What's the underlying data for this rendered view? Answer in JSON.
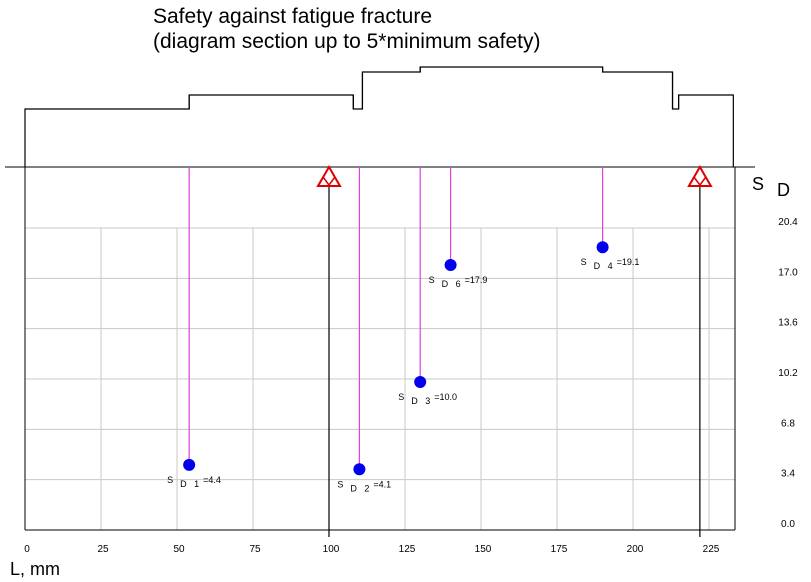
{
  "chart_data": {
    "type": "scatter",
    "title": "Safety against fatigue fracture",
    "subtitle": "(diagram section up to 5*minimum safety)",
    "xlabel": "L, mm",
    "ylabel_main": "S",
    "ylabel_sub": "D",
    "xlim": [
      0,
      233
    ],
    "ylim": [
      0,
      20.4
    ],
    "x_ticks": [
      "0",
      "25",
      "50",
      "75",
      "100",
      "125",
      "150",
      "175",
      "200",
      "225"
    ],
    "y_ticks": [
      "0.0",
      "3.4",
      "6.8",
      "10.2",
      "13.6",
      "17.0",
      "20.4"
    ],
    "grid": true,
    "points": [
      {
        "id": "1",
        "x": 54,
        "y": 4.4,
        "label_s": "S",
        "label_d": "D",
        "label_n": "1",
        "label_v": "=4.4"
      },
      {
        "id": "2",
        "x": 110,
        "y": 4.1,
        "label_s": "S",
        "label_d": "D",
        "label_n": "2",
        "label_v": "=4.1"
      },
      {
        "id": "3",
        "x": 130,
        "y": 10.0,
        "label_s": "S",
        "label_d": "D",
        "label_n": "3",
        "label_v": "=10.0"
      },
      {
        "id": "6",
        "x": 140,
        "y": 17.9,
        "label_s": "S",
        "label_d": "D",
        "label_n": "6",
        "label_v": "=17.9"
      },
      {
        "id": "4",
        "x": 190,
        "y": 19.1,
        "label_s": "S",
        "label_d": "D",
        "label_n": "4",
        "label_v": "=19.1"
      }
    ],
    "supports_x": [
      100,
      222
    ],
    "shaft_sections": [
      {
        "x0": 0,
        "x1": 54,
        "h": 1
      },
      {
        "x0": 54,
        "x1": 108,
        "h": 2
      },
      {
        "x0": 108,
        "x1": 111,
        "h": 1
      },
      {
        "x0": 111,
        "x1": 130,
        "h": 3
      },
      {
        "x0": 130,
        "x1": 190,
        "h": 4
      },
      {
        "x0": 190,
        "x1": 213,
        "h": 3
      },
      {
        "x0": 213,
        "x1": 215,
        "h": 1
      },
      {
        "x0": 215,
        "x1": 233,
        "h": 2
      }
    ],
    "colors": {
      "point": "#0000ee",
      "leader": "#e040e0",
      "support": "#e00000",
      "grid": "#c8c8c8",
      "axis": "#000000"
    }
  }
}
